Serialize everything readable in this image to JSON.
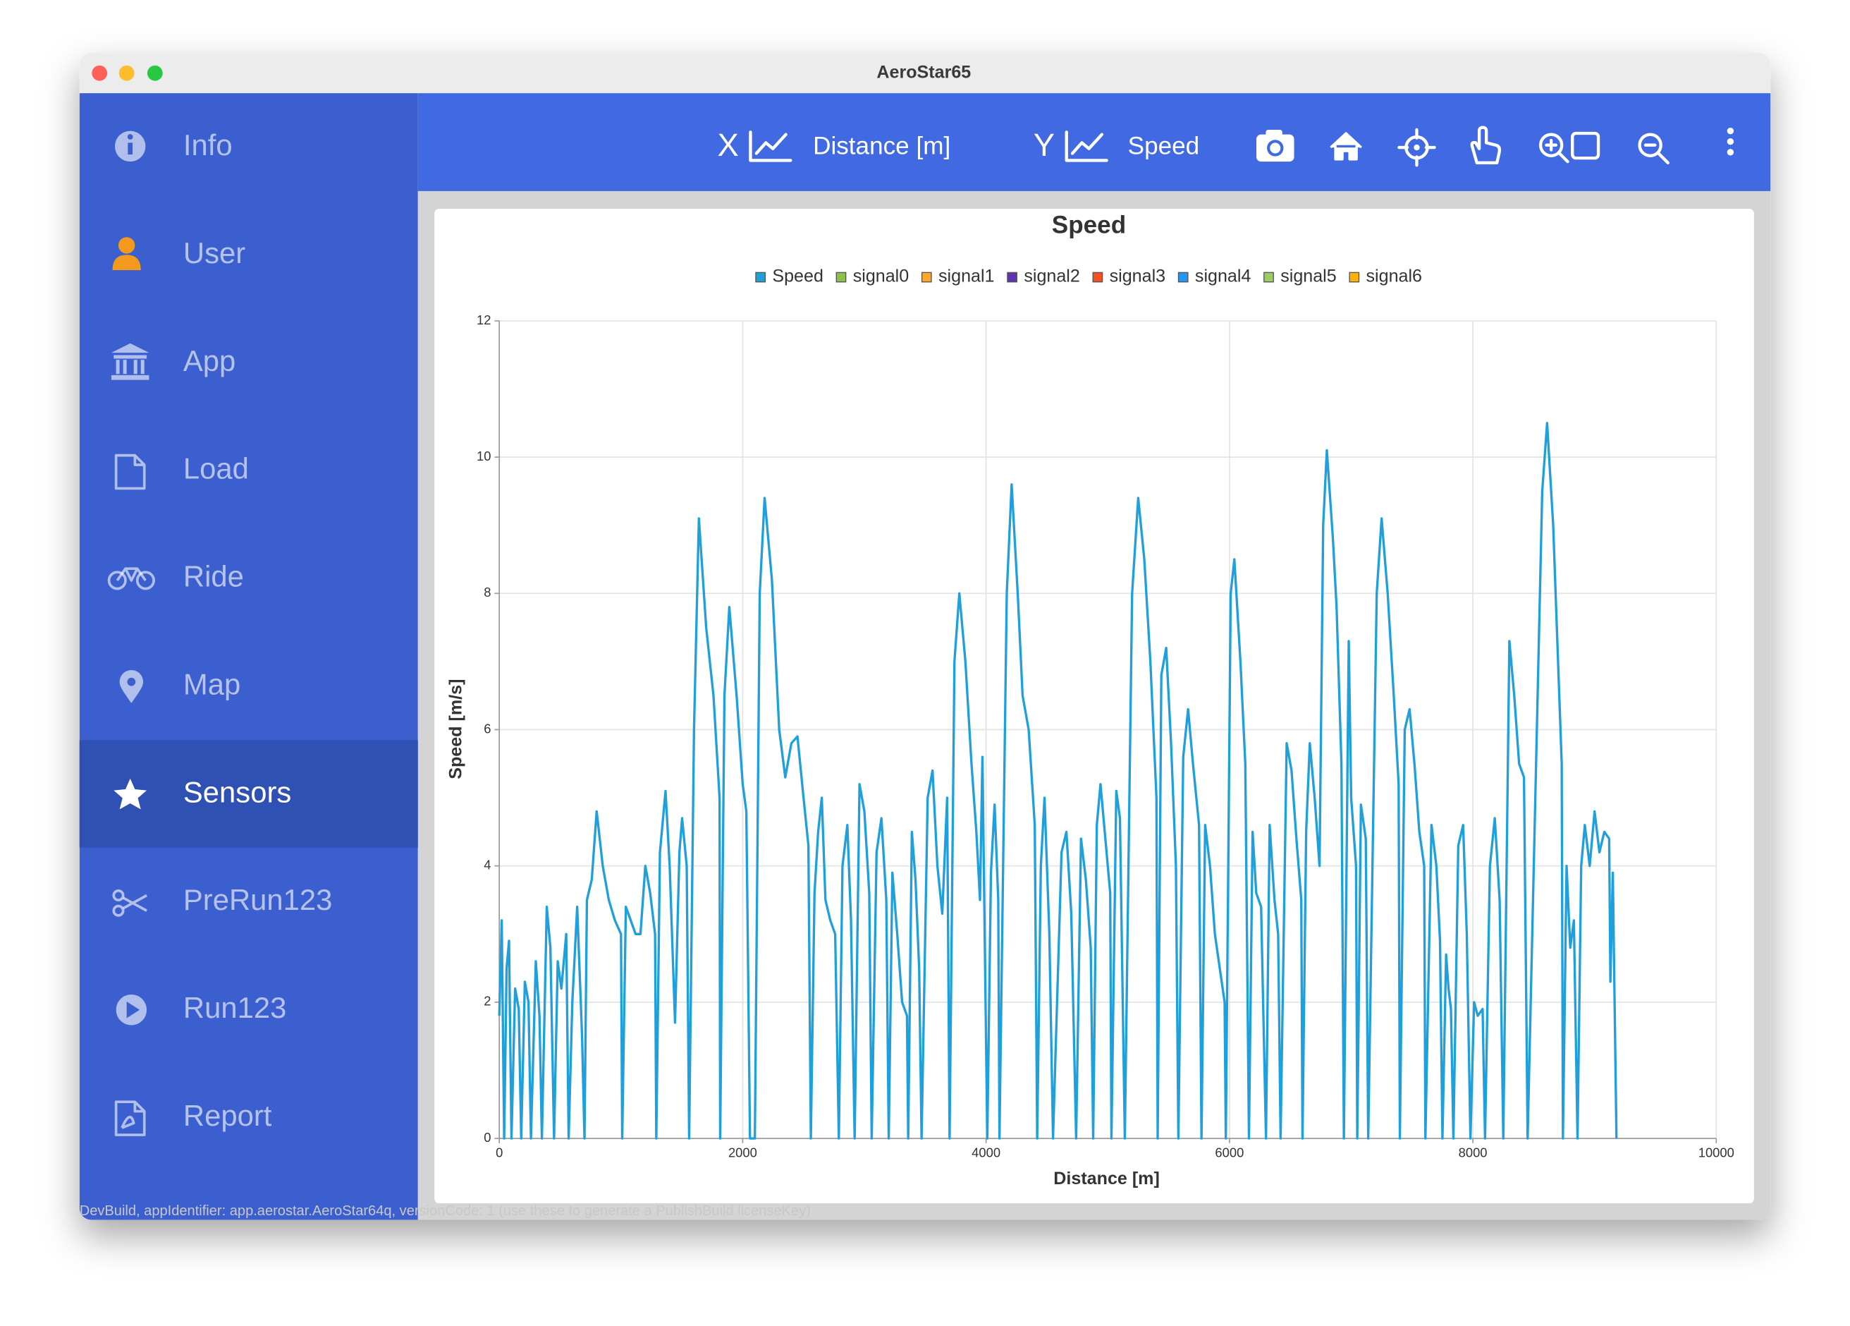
{
  "window": {
    "title": "AeroStar65"
  },
  "sidebar": {
    "items": [
      {
        "label": "Info",
        "active": false
      },
      {
        "label": "User",
        "active": false
      },
      {
        "label": "App",
        "active": false
      },
      {
        "label": "Load",
        "active": false
      },
      {
        "label": "Ride",
        "active": false
      },
      {
        "label": "Map",
        "active": false
      },
      {
        "label": "Sensors",
        "active": true
      },
      {
        "label": "PreRun123",
        "active": false
      },
      {
        "label": "Run123",
        "active": false
      },
      {
        "label": "Report",
        "active": false
      }
    ]
  },
  "toolbar": {
    "x_axis_letter": "X",
    "x_axis_value": "Distance [m]",
    "y_axis_letter": "Y",
    "y_axis_value": "Speed"
  },
  "footer": {
    "text": "DevBuild, appIdentifier: app.aerostar.AeroStar64q, versionCode: 1 (use these to generate a PublishBuild licenseKey)"
  },
  "chart_data": {
    "type": "line",
    "title": "Speed",
    "x_label": "Distance [m]",
    "y_label": "Speed [m/s]",
    "xlim": [
      0,
      10000
    ],
    "xticks": [
      0,
      2000,
      4000,
      6000,
      8000,
      10000
    ],
    "ylim": [
      0,
      12
    ],
    "yticks": [
      0,
      2,
      4,
      6,
      8,
      10,
      12
    ],
    "grid": true,
    "x": [
      0,
      20,
      40,
      60,
      80,
      100,
      130,
      160,
      180,
      210,
      240,
      260,
      300,
      330,
      350,
      390,
      420,
      450,
      480,
      510,
      550,
      570,
      600,
      640,
      680,
      700,
      720,
      760,
      800,
      850,
      900,
      950,
      1000,
      1010,
      1040,
      1080,
      1120,
      1160,
      1200,
      1240,
      1280,
      1290,
      1320,
      1366,
      1400,
      1444,
      1480,
      1502,
      1540,
      1560,
      1600,
      1640,
      1700,
      1760,
      1810,
      1815,
      1850,
      1890,
      1950,
      2000,
      2030,
      2060,
      2100,
      2140,
      2180,
      2240,
      2300,
      2350,
      2400,
      2450,
      2500,
      2540,
      2560,
      2590,
      2620,
      2650,
      2680,
      2720,
      2760,
      2790,
      2820,
      2860,
      2890,
      2920,
      2960,
      3000,
      3040,
      3060,
      3100,
      3140,
      3180,
      3200,
      3230,
      3270,
      3310,
      3350,
      3360,
      3390,
      3420,
      3450,
      3470,
      3520,
      3560,
      3600,
      3640,
      3680,
      3700,
      3740,
      3780,
      3830,
      3880,
      3920,
      3950,
      3970,
      4010,
      4040,
      4070,
      4100,
      4110,
      4170,
      4210,
      4260,
      4300,
      4350,
      4400,
      4420,
      4450,
      4480,
      4520,
      4550,
      4620,
      4660,
      4700,
      4740,
      4780,
      4820,
      4860,
      4880,
      4910,
      4940,
      4980,
      5020,
      5030,
      5070,
      5100,
      5140,
      5200,
      5250,
      5300,
      5350,
      5400,
      5410,
      5440,
      5480,
      5520,
      5560,
      5580,
      5620,
      5660,
      5700,
      5750,
      5770,
      5800,
      5840,
      5880,
      5920,
      5960,
      5970,
      6010,
      6040,
      6090,
      6130,
      6160,
      6190,
      6220,
      6260,
      6300,
      6330,
      6370,
      6400,
      6420,
      6470,
      6510,
      6550,
      6590,
      6600,
      6630,
      6660,
      6700,
      6740,
      6770,
      6800,
      6850,
      6880,
      6920,
      6940,
      6980,
      7000,
      7040,
      7050,
      7080,
      7120,
      7140,
      7210,
      7250,
      7300,
      7350,
      7390,
      7400,
      7440,
      7480,
      7520,
      7560,
      7600,
      7610,
      7660,
      7700,
      7730,
      7750,
      7780,
      7800,
      7820,
      7840,
      7880,
      7920,
      7950,
      7980,
      8010,
      8040,
      8080,
      8100,
      8140,
      8180,
      8220,
      8250,
      8300,
      8340,
      8380,
      8420,
      8450,
      8570,
      8610,
      8660,
      8700,
      8730,
      8740,
      8770,
      8800,
      8830,
      8860,
      8890,
      8920,
      8960,
      9000,
      9040,
      9080,
      9120,
      9130,
      9150,
      9180
    ],
    "series": [
      {
        "name": "Speed",
        "color": "#1fa0dc",
        "values": [
          1.8,
          3.2,
          0,
          2.5,
          2.9,
          0,
          2.2,
          1.9,
          0,
          2.3,
          2.0,
          0,
          2.6,
          1.8,
          0,
          3.4,
          2.8,
          0,
          2.6,
          2.2,
          3.0,
          0,
          2.0,
          3.4,
          1.5,
          0,
          3.5,
          3.8,
          4.8,
          4.0,
          3.5,
          3.2,
          3.0,
          0,
          3.4,
          3.2,
          3.0,
          3.0,
          4.0,
          3.6,
          3.0,
          0,
          4.2,
          5.1,
          4.0,
          1.7,
          4.2,
          4.7,
          4.0,
          0,
          6.0,
          9.1,
          7.5,
          6.5,
          5.0,
          0,
          6.5,
          7.8,
          6.5,
          5.2,
          4.8,
          0,
          0,
          8.0,
          9.4,
          8.2,
          6.0,
          5.3,
          5.8,
          5.9,
          5.0,
          4.3,
          0,
          3.6,
          4.5,
          5.0,
          3.5,
          3.2,
          3.0,
          0,
          4.0,
          4.6,
          3.2,
          0,
          5.2,
          4.8,
          3.6,
          0,
          4.2,
          4.7,
          3.5,
          0,
          3.9,
          3.0,
          2.0,
          1.8,
          0,
          4.5,
          3.8,
          2.5,
          0,
          5.0,
          5.4,
          4.0,
          3.3,
          5.0,
          0,
          7.0,
          8.0,
          7.0,
          5.5,
          4.5,
          3.5,
          5.6,
          0,
          3.9,
          4.9,
          3.5,
          0,
          8.0,
          9.6,
          8.0,
          6.5,
          6.0,
          4.6,
          0,
          4.0,
          5.0,
          3.0,
          0,
          4.2,
          4.5,
          3.3,
          0,
          4.4,
          3.8,
          2.8,
          0,
          4.6,
          5.2,
          4.4,
          3.6,
          0,
          5.1,
          4.7,
          0,
          8.0,
          9.4,
          8.5,
          7.0,
          5.0,
          0,
          6.8,
          7.2,
          5.8,
          4.0,
          0,
          5.6,
          6.3,
          5.5,
          4.6,
          0,
          4.6,
          4.0,
          3.0,
          2.5,
          2.0,
          0,
          8.0,
          8.5,
          7.0,
          5.5,
          0,
          4.5,
          3.6,
          3.4,
          0,
          4.6,
          3.5,
          3.0,
          0,
          5.8,
          5.4,
          4.4,
          3.5,
          0,
          4.5,
          5.8,
          5.0,
          4.0,
          9.0,
          10.1,
          8.8,
          7.8,
          5.5,
          0,
          7.3,
          5.0,
          4.0,
          0,
          4.9,
          4.4,
          0,
          8.0,
          9.1,
          8.0,
          6.5,
          5.2,
          0,
          6.0,
          6.3,
          5.5,
          4.5,
          4.0,
          0,
          4.6,
          4.0,
          2.9,
          0,
          2.7,
          2.2,
          1.9,
          0,
          4.3,
          4.6,
          3.0,
          0,
          2.0,
          1.8,
          1.9,
          0,
          4.0,
          4.7,
          3.5,
          0,
          7.3,
          6.5,
          5.5,
          5.3,
          0,
          9.5,
          10.5,
          9.0,
          7.0,
          5.5,
          0,
          4.0,
          2.8,
          3.2,
          0,
          4.0,
          4.6,
          4.0,
          4.8,
          4.2,
          4.5,
          4.4,
          2.3,
          3.9,
          0
        ]
      },
      {
        "name": "signal0",
        "color": "#8bc34a"
      },
      {
        "name": "signal1",
        "color": "#ffa726"
      },
      {
        "name": "signal2",
        "color": "#5e35b1"
      },
      {
        "name": "signal3",
        "color": "#f4511e"
      },
      {
        "name": "signal4",
        "color": "#2196f3"
      },
      {
        "name": "signal5",
        "color": "#9ccc65"
      },
      {
        "name": "signal6",
        "color": "#ffb300"
      }
    ]
  }
}
